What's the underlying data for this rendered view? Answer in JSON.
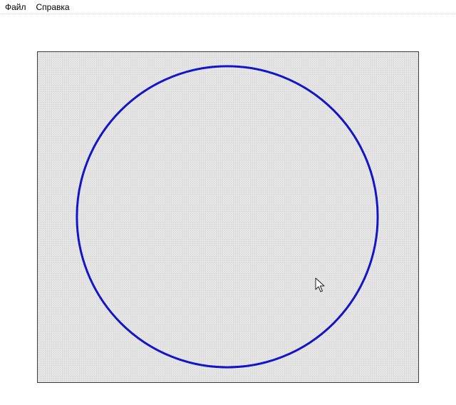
{
  "menubar": {
    "items": [
      {
        "label": "Файл"
      },
      {
        "label": "Справка"
      }
    ]
  },
  "canvas": {
    "background_color": "#e4e4e4",
    "border_color": "#3a3a3a",
    "shape": {
      "type": "circle",
      "stroke_color": "#1414c8",
      "fill": "none"
    }
  },
  "cursor": {
    "icon": "arrow-pointer-icon"
  }
}
